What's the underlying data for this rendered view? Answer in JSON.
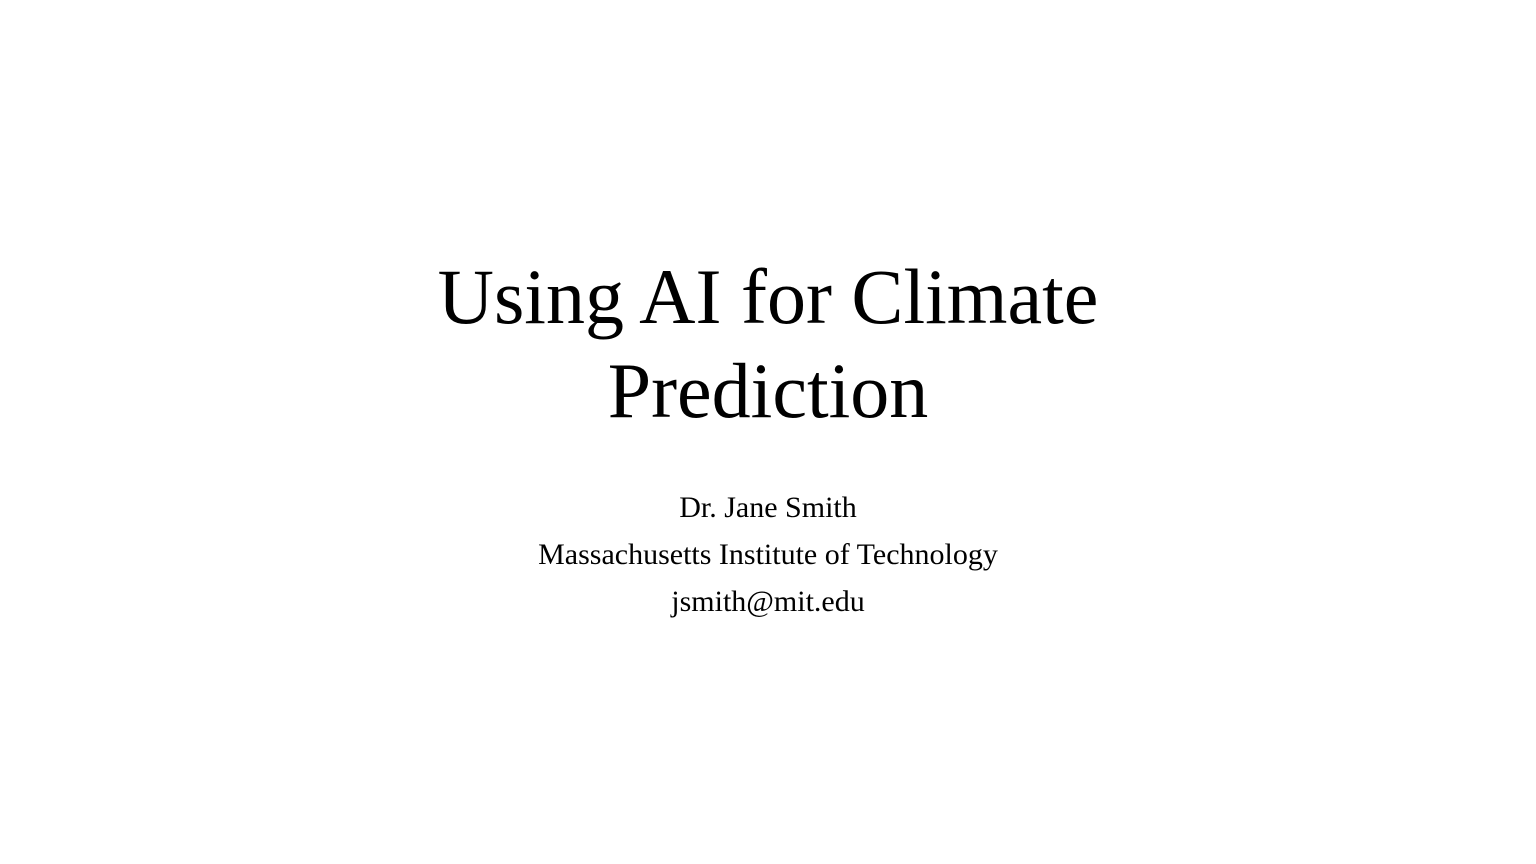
{
  "slide": {
    "title_line1": "Using AI for Climate",
    "title_line2": "Prediction",
    "author": "Dr. Jane Smith",
    "institution": "Massachusetts Institute of Technology",
    "email": "jsmith@mit.edu"
  }
}
